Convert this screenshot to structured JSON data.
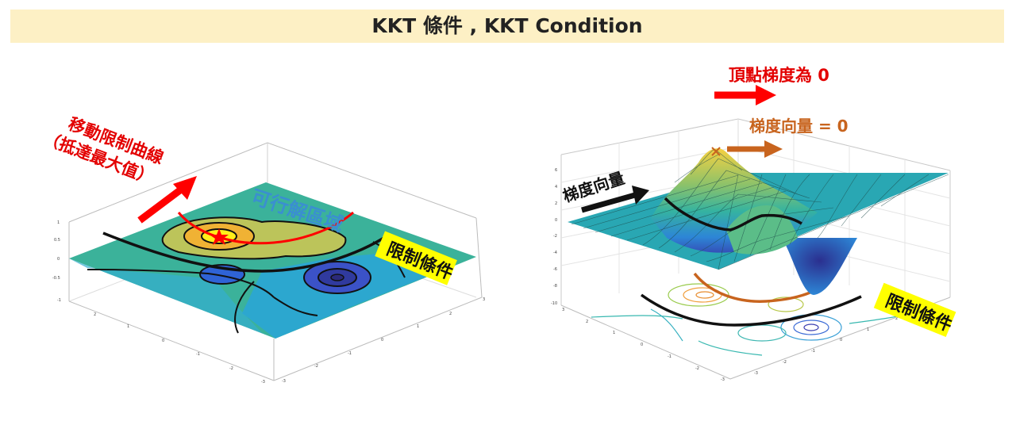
{
  "title": "KKT 條件 , KKT Condition",
  "left_panel": {
    "move_label_line1": "移動限制曲線",
    "move_label_line2": "（抵達最大值）",
    "feasible_region_label": "可行解區域",
    "constraint_badge": "限制條件",
    "z_ticks": [
      "1",
      "0.5",
      "0",
      "-0.5",
      "-1"
    ],
    "x_ticks": [
      "2",
      "1",
      "0",
      "-1",
      "-2",
      "-3"
    ],
    "y_ticks": [
      "3",
      "2",
      "1",
      "0",
      "-1",
      "-2",
      "-3"
    ]
  },
  "right_panel": {
    "vertex_gradient_label": "頂點梯度為 0",
    "gradient_vector_zero_label": "梯度向量 = 0",
    "gradient_vector_label": "梯度向量",
    "constraint_badge": "限制條件",
    "z_ticks": [
      "6",
      "4",
      "2",
      "0",
      "-2",
      "-4",
      "-6",
      "-8",
      "-10"
    ],
    "x_ticks": [
      "3",
      "2",
      "1",
      "0",
      "-1",
      "-2",
      "-3"
    ],
    "y_ticks": [
      "3",
      "2",
      "1",
      "0",
      "-1",
      "-2",
      "-3"
    ]
  },
  "colors": {
    "title_bg": "#fdf0c5",
    "red_arrow": "#ff0000",
    "orange_arrow": "#c8641e",
    "badge_bg": "#ffff00",
    "feasible_text": "#3a8fd0"
  }
}
